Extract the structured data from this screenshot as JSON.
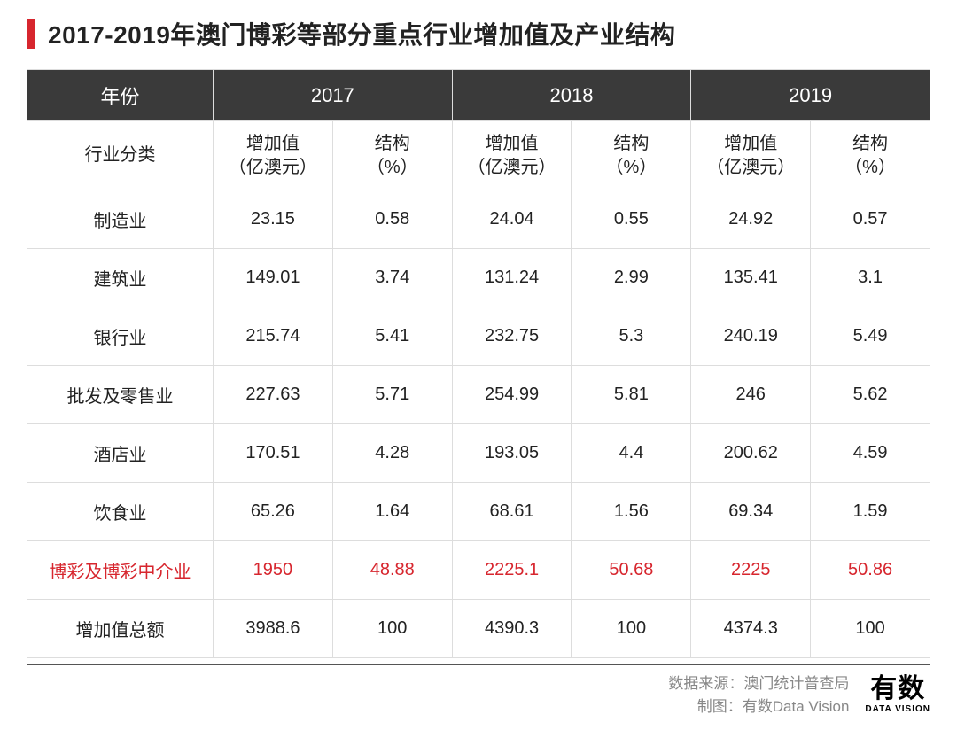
{
  "title": "2017-2019年澳门博彩等部分重点行业增加值及产业结构",
  "table": {
    "header_row": [
      "年份",
      "2017",
      "2018",
      "2019"
    ],
    "sub_header": {
      "label": "行业分类",
      "val_label": "增加值\n（亿澳元）",
      "pct_label": "结构\n（%）"
    },
    "rows": [
      {
        "label": "制造业",
        "v17": "23.15",
        "p17": "0.58",
        "v18": "24.04",
        "p18": "0.55",
        "v19": "24.92",
        "p19": "0.57",
        "highlight": false
      },
      {
        "label": "建筑业",
        "v17": "149.01",
        "p17": "3.74",
        "v18": "131.24",
        "p18": "2.99",
        "v19": "135.41",
        "p19": "3.1",
        "highlight": false
      },
      {
        "label": "银行业",
        "v17": "215.74",
        "p17": "5.41",
        "v18": "232.75",
        "p18": "5.3",
        "v19": "240.19",
        "p19": "5.49",
        "highlight": false
      },
      {
        "label": "批发及零售业",
        "v17": "227.63",
        "p17": "5.71",
        "v18": "254.99",
        "p18": "5.81",
        "v19": "246",
        "p19": "5.62",
        "highlight": false
      },
      {
        "label": "酒店业",
        "v17": "170.51",
        "p17": "4.28",
        "v18": "193.05",
        "p18": "4.4",
        "v19": "200.62",
        "p19": "4.59",
        "highlight": false
      },
      {
        "label": "饮食业",
        "v17": "65.26",
        "p17": "1.64",
        "v18": "68.61",
        "p18": "1.56",
        "v19": "69.34",
        "p19": "1.59",
        "highlight": false
      },
      {
        "label": "博彩及博彩中介业",
        "v17": "1950",
        "p17": "48.88",
        "v18": "2225.1",
        "p18": "50.68",
        "v19": "2225",
        "p19": "50.86",
        "highlight": true
      },
      {
        "label": "增加值总额",
        "v17": "3988.6",
        "p17": "100",
        "v18": "4390.3",
        "p18": "100",
        "v19": "4374.3",
        "p19": "100",
        "highlight": false
      }
    ],
    "colors": {
      "header_bg": "#3a3a3a",
      "header_fg": "#ffffff",
      "border": "#dddddd",
      "highlight_fg": "#d7262e",
      "text": "#222222",
      "accent_bar": "#d7262e"
    },
    "font_sizes": {
      "title": 28,
      "header": 22,
      "sub_header": 20,
      "cell": 20
    }
  },
  "footer": {
    "source_label": "数据来源：",
    "source_value": "澳门统计普查局",
    "chart_label": "制图：",
    "chart_value": "有数Data Vision",
    "logo_main": "有数",
    "logo_sub": "DATA VISION"
  }
}
